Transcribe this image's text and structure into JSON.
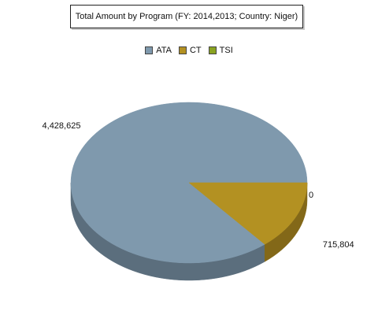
{
  "chart_data": {
    "type": "pie",
    "title": "Total Amount by Program (FY: 2014,2013; Country: Niger)",
    "legend_position": "top",
    "slices": [
      {
        "label": "ATA",
        "value": 4428625,
        "display": "4,428,625",
        "color": "#7f99ad",
        "side_color": "#5b6e7d"
      },
      {
        "label": "CT",
        "value": 715804,
        "display": "715,804",
        "color": "#b39122",
        "side_color": "#836818"
      },
      {
        "label": "TSI",
        "value": 0,
        "display": "0",
        "color": "#8aa321",
        "side_color": "#667a18"
      }
    ]
  }
}
